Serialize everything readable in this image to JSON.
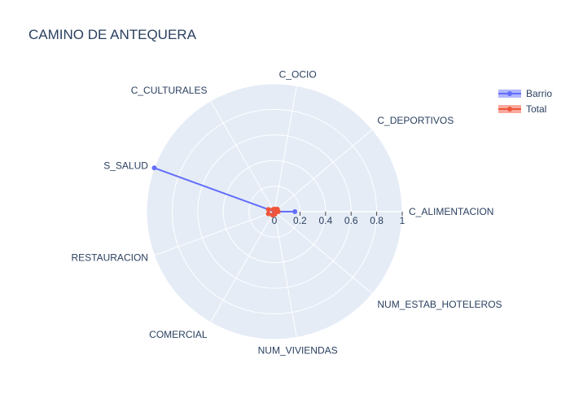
{
  "chart_data": {
    "type": "polar",
    "title": "CAMINO DE ANTEQUERA",
    "categories": [
      "C_ALIMENTACION",
      "C_DEPORTIVOS",
      "C_OCIO",
      "C_CULTURALES",
      "S_SALUD",
      "RESTAURACION",
      "COMERCIAL",
      "NUM_VIVIENDAS",
      "NUM_ESTAB_HOTELEROS"
    ],
    "radial_ticks": [
      "0",
      "0.2",
      "0.4",
      "0.6",
      "0.8",
      "1"
    ],
    "rlim": [
      0,
      1
    ],
    "series": [
      {
        "name": "Barrio",
        "color": "#636efa",
        "values": [
          0.16,
          0.0,
          0.0,
          0.0,
          1.0,
          0.0,
          0.0,
          0.0,
          0.0
        ]
      },
      {
        "name": "Total",
        "color": "#ef553b",
        "values": [
          0.03,
          0.03,
          0.02,
          0.02,
          0.05,
          0.05,
          0.03,
          0.02,
          0.01
        ]
      }
    ],
    "legend_position": "top-right",
    "background": "#e5ecf6",
    "grid": true
  }
}
